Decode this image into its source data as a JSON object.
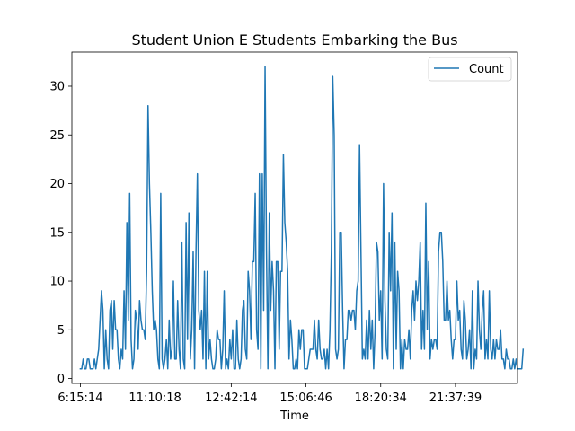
{
  "chart_data": {
    "type": "line",
    "title": "Student Union E Students Embarking the Bus",
    "xlabel": "Time",
    "ylabel": "",
    "legend": {
      "placement": "top-right",
      "entries": [
        "Count"
      ]
    },
    "grid": false,
    "xlim": [
      -6,
      310
    ],
    "ylim": [
      -0.5,
      33.5
    ],
    "xticks": [
      {
        "pos": 0,
        "label": "6:15:14"
      },
      {
        "pos": 53,
        "label": "11:10:18"
      },
      {
        "pos": 107,
        "label": "12:42:14"
      },
      {
        "pos": 160,
        "label": "15:06:46"
      },
      {
        "pos": 213,
        "label": "18:20:34"
      },
      {
        "pos": 266,
        "label": "21:37:39"
      }
    ],
    "yticks": [
      0,
      5,
      10,
      15,
      20,
      25,
      30
    ],
    "series": [
      {
        "name": "Count",
        "color": "#1f77b4",
        "values": [
          1,
          1,
          2,
          1,
          1,
          2,
          2,
          1,
          1,
          1,
          2,
          1,
          2,
          3,
          6,
          9,
          7,
          1,
          5,
          2,
          1,
          7,
          8,
          3,
          8,
          5,
          5,
          2,
          1,
          3,
          2,
          9,
          3,
          16,
          6,
          19,
          4,
          1,
          2,
          7,
          6,
          3,
          8,
          6,
          5,
          5,
          4,
          11,
          28,
          20,
          15,
          9,
          5,
          6,
          5,
          2,
          1,
          19,
          2,
          1,
          2,
          4,
          1,
          6,
          2,
          3,
          10,
          2,
          2,
          8,
          3,
          1,
          14,
          2,
          1,
          16,
          4,
          17,
          2,
          5,
          13,
          1,
          13,
          21,
          7,
          5,
          7,
          2,
          11,
          1,
          11,
          2,
          4,
          2,
          1,
          1,
          2,
          5,
          4,
          4,
          1,
          3,
          9,
          1,
          2,
          1,
          4,
          2,
          5,
          1,
          1,
          6,
          2,
          1,
          2,
          7,
          8,
          3,
          2,
          11,
          9,
          4,
          12,
          12,
          19,
          5,
          3,
          21,
          1,
          21,
          7,
          32,
          13,
          1,
          17,
          7,
          12,
          9,
          1,
          12,
          12,
          3,
          11,
          11,
          23,
          16,
          14,
          11,
          2,
          6,
          4,
          1,
          1,
          2,
          1,
          5,
          3,
          5,
          5,
          1,
          1,
          1,
          2,
          3,
          3,
          3,
          6,
          3,
          2,
          6,
          3,
          2,
          2,
          3,
          1,
          3,
          1,
          5,
          13,
          31,
          25,
          3,
          2,
          3,
          15,
          15,
          7,
          1,
          4,
          4,
          7,
          7,
          6,
          7,
          7,
          5,
          9,
          10,
          24,
          13,
          2,
          3,
          2,
          6,
          2,
          7,
          3,
          6,
          1,
          5,
          14,
          13,
          6,
          9,
          2,
          20,
          8,
          3,
          2,
          15,
          9,
          17,
          1,
          14,
          3,
          11,
          9,
          1,
          4,
          1,
          4,
          3,
          3,
          5,
          2,
          7,
          9,
          6,
          10,
          8,
          10,
          14,
          3,
          7,
          3,
          18,
          5,
          12,
          2,
          4,
          3,
          4,
          4,
          3,
          13,
          15,
          15,
          12,
          6,
          6,
          10,
          6,
          7,
          4,
          2,
          4,
          4,
          10,
          6,
          7,
          3,
          2,
          8,
          6,
          2,
          3,
          5,
          1,
          9,
          1,
          3,
          2,
          10,
          5,
          3,
          7,
          9,
          2,
          4,
          2,
          9,
          3,
          2,
          4,
          2,
          4,
          3,
          3,
          5,
          2,
          2,
          1,
          3,
          2,
          2,
          1,
          1,
          2,
          1,
          2,
          1,
          1,
          1,
          1,
          3
        ]
      }
    ]
  }
}
